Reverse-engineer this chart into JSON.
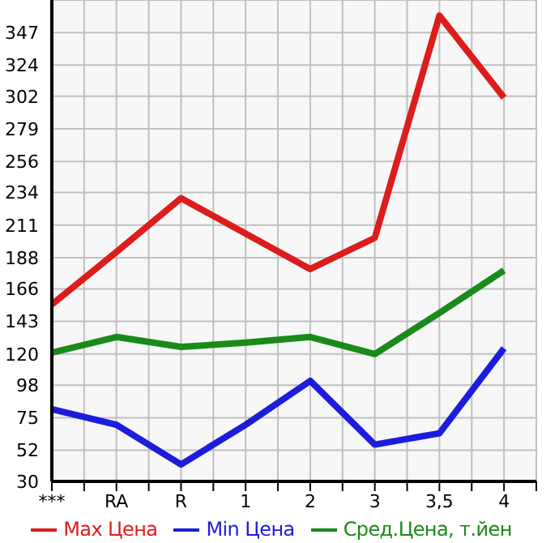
{
  "chart_data": {
    "type": "line",
    "categories": [
      "***",
      "RA",
      "R",
      "1",
      "2",
      "3",
      "3,5",
      "4"
    ],
    "series": [
      {
        "name": "Max Цена",
        "color": "#dd1c1c",
        "values": [
          155,
          192,
          230,
          205,
          180,
          202,
          359,
          301
        ]
      },
      {
        "name": "Min Цена",
        "color": "#1c1cdd",
        "values": [
          81,
          70,
          42,
          70,
          101,
          56,
          64,
          124
        ]
      },
      {
        "name": "Сред.Цена, т.йен",
        "color": "#1a8a1a",
        "values": [
          121,
          132,
          125,
          128,
          132,
          120,
          149,
          179
        ]
      }
    ],
    "ylim": [
      30,
      370
    ],
    "yticks": [
      30,
      52,
      75,
      98,
      120,
      143,
      166,
      188,
      211,
      234,
      256,
      279,
      302,
      324,
      347
    ],
    "grid": true,
    "legend": "bottom",
    "marker": "none",
    "line_style": "solid"
  }
}
